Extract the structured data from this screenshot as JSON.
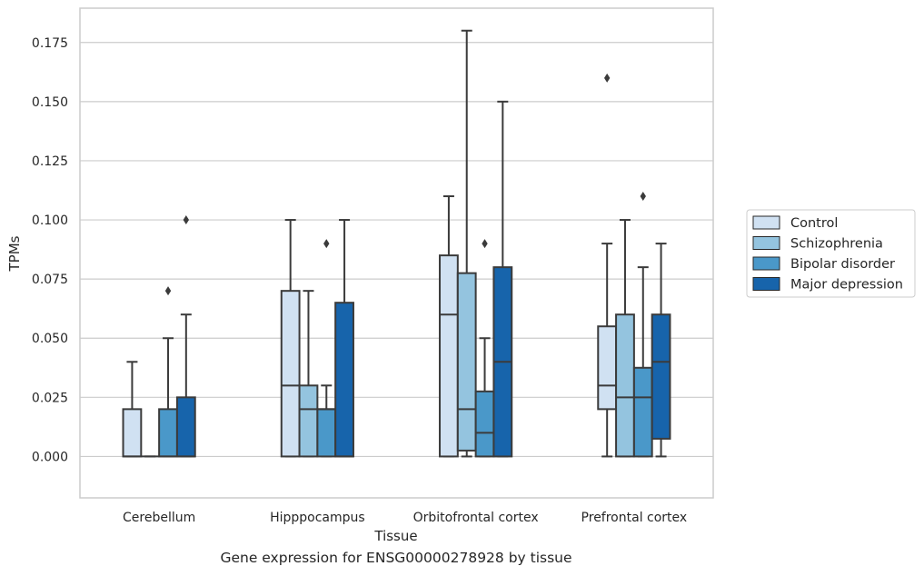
{
  "caption": "Gene expression for ENSG00000278928 by tissue",
  "chart_data": {
    "type": "box",
    "xlabel": "Tissue",
    "ylabel": "TPMs",
    "ylim": [
      -0.0175,
      0.1895
    ],
    "yticks": [
      0.0,
      0.025,
      0.05,
      0.075,
      0.1,
      0.125,
      0.15,
      0.175
    ],
    "ytick_labels": [
      "0.000",
      "0.025",
      "0.050",
      "0.075",
      "0.100",
      "0.125",
      "0.150",
      "0.175"
    ],
    "grid": true,
    "legend_position": "right",
    "categories": [
      "Cerebellum",
      "Hipppocampus",
      "Orbitofrontal cortex",
      "Prefrontal cortex"
    ],
    "series": [
      {
        "name": "Control",
        "color": "#d0e1f2",
        "boxes": [
          {
            "whisker_low": 0.0,
            "q1": 0.0,
            "median": 0.0,
            "q3": 0.02,
            "whisker_high": 0.04,
            "outliers": []
          },
          {
            "whisker_low": 0.0,
            "q1": 0.0,
            "median": 0.03,
            "q3": 0.07,
            "whisker_high": 0.1,
            "outliers": []
          },
          {
            "whisker_low": 0.0,
            "q1": 0.0,
            "median": 0.06,
            "q3": 0.085,
            "whisker_high": 0.11,
            "outliers": []
          },
          {
            "whisker_low": 0.0,
            "q1": 0.02,
            "median": 0.03,
            "q3": 0.055,
            "whisker_high": 0.09,
            "outliers": [
              0.16
            ]
          }
        ]
      },
      {
        "name": "Schizophrenia",
        "color": "#94c4df",
        "boxes": [
          {
            "whisker_low": 0.0,
            "q1": 0.0,
            "median": 0.0,
            "q3": 0.0,
            "whisker_high": 0.0,
            "outliers": []
          },
          {
            "whisker_low": 0.0,
            "q1": 0.0,
            "median": 0.02,
            "q3": 0.03,
            "whisker_high": 0.07,
            "outliers": []
          },
          {
            "whisker_low": 0.0,
            "q1": 0.0025,
            "median": 0.02,
            "q3": 0.0775,
            "whisker_high": 0.18,
            "outliers": []
          },
          {
            "whisker_low": 0.0,
            "q1": 0.0,
            "median": 0.025,
            "q3": 0.06,
            "whisker_high": 0.1,
            "outliers": []
          }
        ]
      },
      {
        "name": "Bipolar disorder",
        "color": "#4a98c9",
        "boxes": [
          {
            "whisker_low": 0.0,
            "q1": 0.0,
            "median": 0.0,
            "q3": 0.02,
            "whisker_high": 0.05,
            "outliers": [
              0.07
            ]
          },
          {
            "whisker_low": 0.0,
            "q1": 0.0,
            "median": 0.02,
            "q3": 0.02,
            "whisker_high": 0.03,
            "outliers": [
              0.09
            ]
          },
          {
            "whisker_low": 0.0,
            "q1": 0.0,
            "median": 0.01,
            "q3": 0.0275,
            "whisker_high": 0.05,
            "outliers": [
              0.09
            ]
          },
          {
            "whisker_low": 0.0,
            "q1": 0.0,
            "median": 0.025,
            "q3": 0.0375,
            "whisker_high": 0.08,
            "outliers": [
              0.11
            ]
          }
        ]
      },
      {
        "name": "Major depression",
        "color": "#1764ab",
        "boxes": [
          {
            "whisker_low": 0.0,
            "q1": 0.0,
            "median": 0.0,
            "q3": 0.025,
            "whisker_high": 0.06,
            "outliers": [
              0.1
            ]
          },
          {
            "whisker_low": 0.0,
            "q1": 0.0,
            "median": 0.0,
            "q3": 0.065,
            "whisker_high": 0.1,
            "outliers": []
          },
          {
            "whisker_low": 0.0,
            "q1": 0.0,
            "median": 0.04,
            "q3": 0.08,
            "whisker_high": 0.15,
            "outliers": []
          },
          {
            "whisker_low": 0.0,
            "q1": 0.0075,
            "median": 0.04,
            "q3": 0.06,
            "whisker_high": 0.09,
            "outliers": []
          }
        ]
      }
    ]
  }
}
